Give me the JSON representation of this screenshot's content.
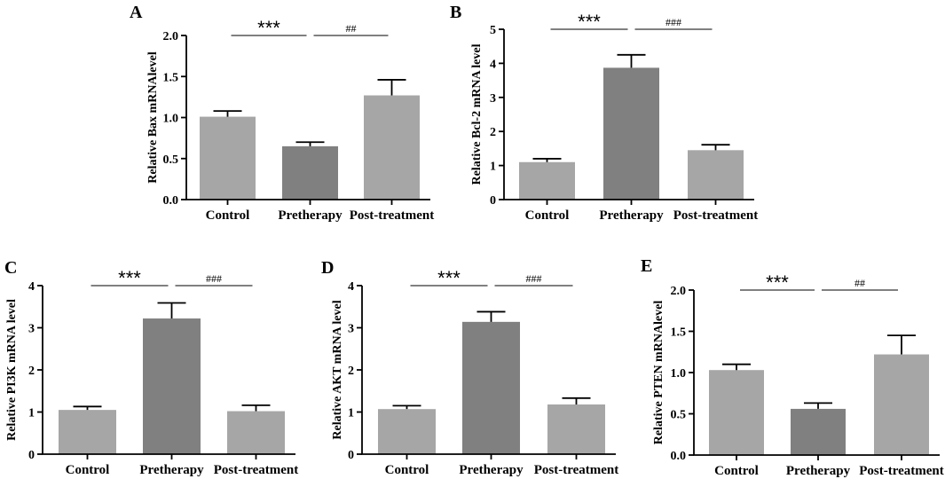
{
  "chart_data": [
    {
      "type": "bar",
      "panel": "A",
      "ylabel": "Relative Bax mRNAlevel",
      "categories": [
        "Control",
        "Pretherapy",
        "Post-treatment"
      ],
      "values": [
        1.01,
        0.65,
        1.27
      ],
      "errors": [
        0.07,
        0.05,
        0.19
      ],
      "colors": [
        "#a6a6a6",
        "#808080",
        "#a6a6a6"
      ],
      "ylim": [
        0,
        2.0
      ],
      "yticks": [
        "0.0",
        "0.5",
        "1.0",
        "1.5",
        "2.0"
      ],
      "significance": [
        {
          "from": 0,
          "to": 1,
          "label": "***"
        },
        {
          "from": 1,
          "to": 2,
          "label": "##"
        }
      ]
    },
    {
      "type": "bar",
      "panel": "B",
      "ylabel": "Relative Bcl-2 mRNA level",
      "categories": [
        "Control",
        "Pretherapy",
        "Post-treatment"
      ],
      "values": [
        1.1,
        3.87,
        1.45
      ],
      "errors": [
        0.1,
        0.38,
        0.16
      ],
      "colors": [
        "#a6a6a6",
        "#808080",
        "#a6a6a6"
      ],
      "ylim": [
        0,
        5
      ],
      "yticks": [
        "0",
        "1",
        "2",
        "3",
        "4",
        "5"
      ],
      "significance": [
        {
          "from": 0,
          "to": 1,
          "label": "***"
        },
        {
          "from": 1,
          "to": 2,
          "label": "###"
        }
      ]
    },
    {
      "type": "bar",
      "panel": "C",
      "ylabel": "Relative PI3K mRNA level",
      "categories": [
        "Control",
        "Pretherapy",
        "Post-treatment"
      ],
      "values": [
        1.05,
        3.22,
        1.02
      ],
      "errors": [
        0.08,
        0.37,
        0.14
      ],
      "colors": [
        "#a6a6a6",
        "#808080",
        "#a6a6a6"
      ],
      "ylim": [
        0,
        4
      ],
      "yticks": [
        "0",
        "1",
        "2",
        "3",
        "4"
      ],
      "significance": [
        {
          "from": 0,
          "to": 1,
          "label": "***"
        },
        {
          "from": 1,
          "to": 2,
          "label": "###"
        }
      ]
    },
    {
      "type": "bar",
      "panel": "D",
      "ylabel": "Relative AKT mRNA level",
      "categories": [
        "Control",
        "Pretherapy",
        "Post-treatment"
      ],
      "values": [
        1.07,
        3.14,
        1.18
      ],
      "errors": [
        0.08,
        0.24,
        0.15
      ],
      "colors": [
        "#a6a6a6",
        "#808080",
        "#a6a6a6"
      ],
      "ylim": [
        0,
        4
      ],
      "yticks": [
        "0",
        "1",
        "2",
        "3",
        "4"
      ],
      "significance": [
        {
          "from": 0,
          "to": 1,
          "label": "***"
        },
        {
          "from": 1,
          "to": 2,
          "label": "###"
        }
      ]
    },
    {
      "type": "bar",
      "panel": "E",
      "ylabel": "Relative PTEN mRNAlevel",
      "categories": [
        "Control",
        "Pretherapy",
        "Post-treatment"
      ],
      "values": [
        1.03,
        0.56,
        1.22
      ],
      "errors": [
        0.07,
        0.07,
        0.23
      ],
      "colors": [
        "#a6a6a6",
        "#808080",
        "#a6a6a6"
      ],
      "ylim": [
        0,
        2.0
      ],
      "yticks": [
        "0.0",
        "0.5",
        "1.0",
        "1.5",
        "2.0"
      ],
      "significance": [
        {
          "from": 0,
          "to": 1,
          "label": "***"
        },
        {
          "from": 1,
          "to": 2,
          "label": "##"
        }
      ]
    }
  ]
}
